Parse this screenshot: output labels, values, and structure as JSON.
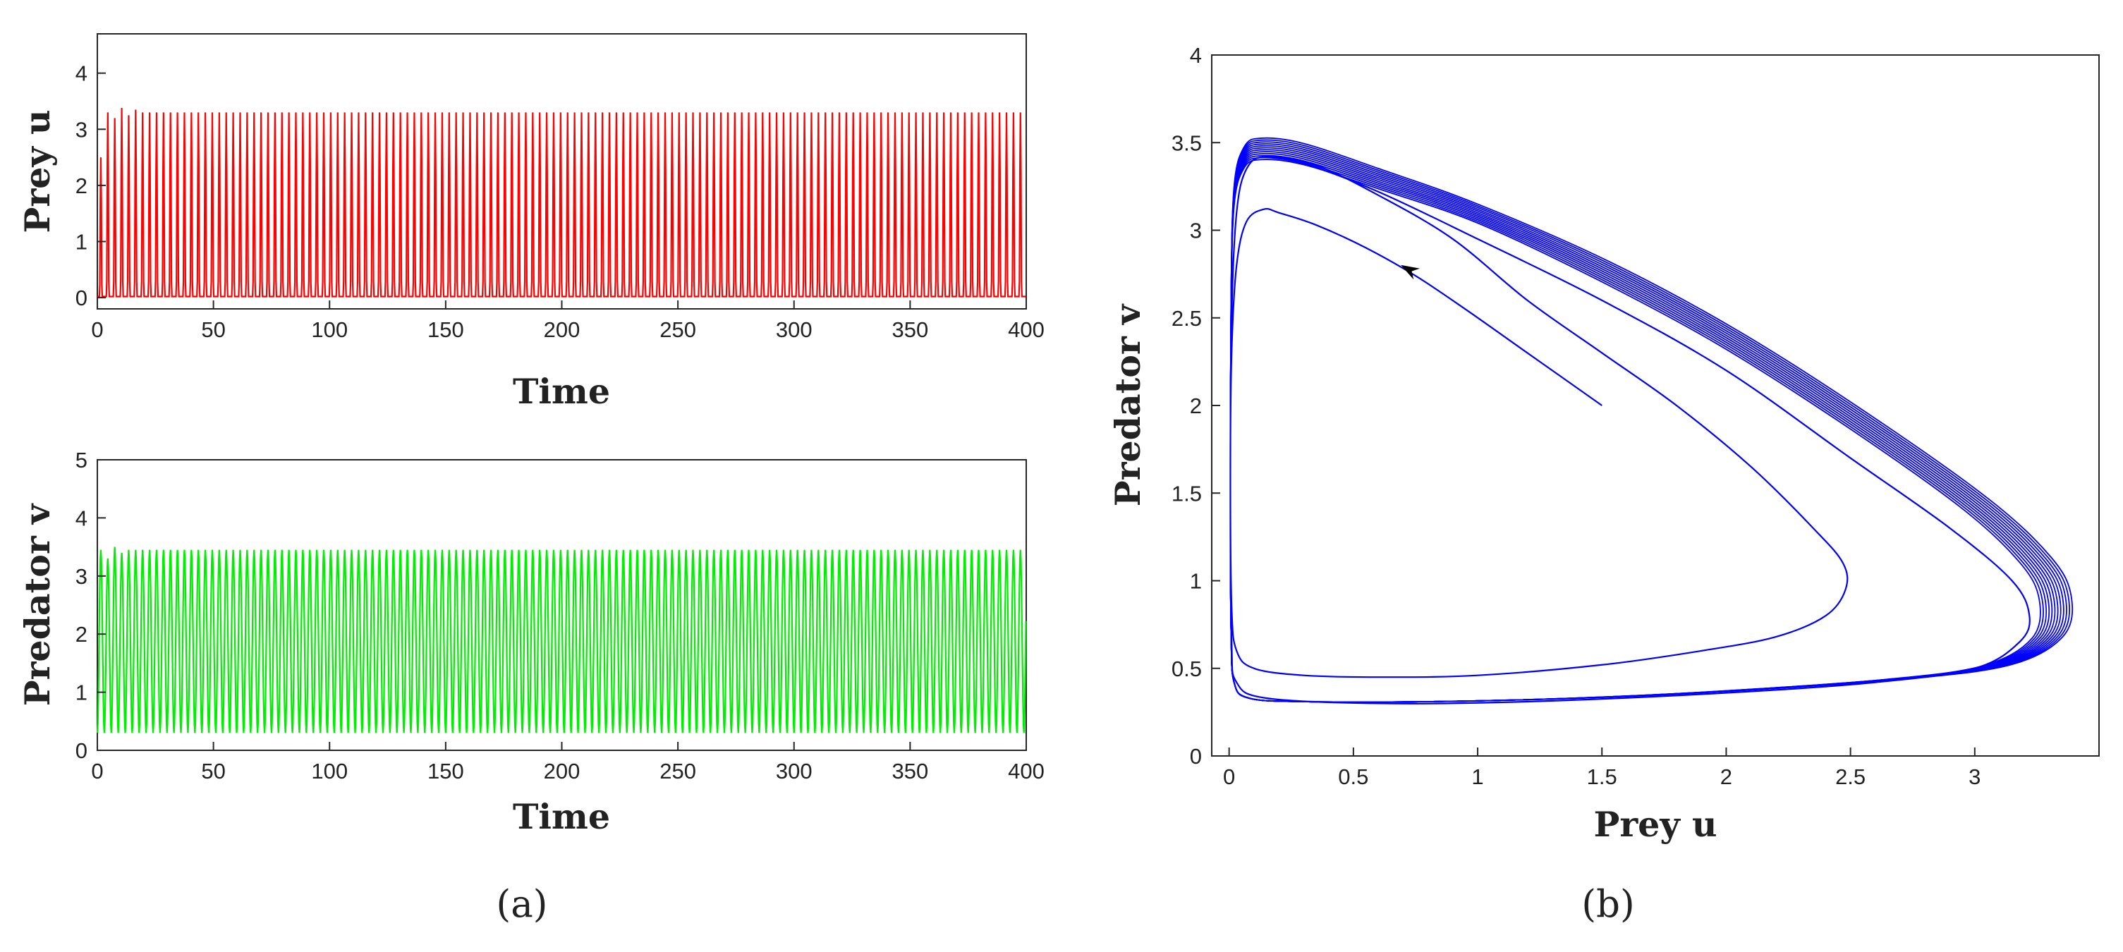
{
  "figure": {
    "panel_labels": [
      "(a)",
      "(b)"
    ]
  },
  "chart_data": [
    {
      "id": "prey-time",
      "type": "line",
      "title": "",
      "xlabel": "Time",
      "ylabel": "Prey u",
      "xlim": [
        0,
        400
      ],
      "ylim": [
        -0.2,
        4.7
      ],
      "xticks": [
        0,
        50,
        100,
        150,
        200,
        250,
        300,
        350,
        400
      ],
      "yticks": [
        0,
        1,
        2,
        3,
        4
      ],
      "grid": false,
      "color": "#ff0000",
      "series": [
        {
          "kind": "oscillation",
          "period": 3.0,
          "min": 0.02,
          "max": 3.3,
          "shape": "spike",
          "transient_peaks": [
            [
              1.5,
              2.5
            ],
            [
              6.5,
              3.2
            ],
            [
              9.5,
              3.38
            ],
            [
              12.5,
              3.25
            ],
            [
              15.5,
              3.35
            ]
          ],
          "x_start": 0,
          "x_end": 400
        }
      ]
    },
    {
      "id": "predator-time",
      "type": "line",
      "title": "",
      "xlabel": "Time",
      "ylabel": "Predator v",
      "xlim": [
        0,
        400
      ],
      "ylim": [
        0,
        5
      ],
      "xticks": [
        0,
        50,
        100,
        150,
        200,
        250,
        300,
        350,
        400
      ],
      "yticks": [
        0,
        1,
        2,
        3,
        4,
        5
      ],
      "grid": false,
      "color": "#00ee00",
      "series": [
        {
          "kind": "oscillation",
          "period": 3.0,
          "min": 0.3,
          "max": 3.45,
          "shape": "smooth",
          "transient_peaks": [
            [
              4.5,
              3.3
            ],
            [
              7.5,
              3.5
            ],
            [
              10.5,
              3.4
            ]
          ],
          "x_start": 0,
          "x_end": 400
        }
      ]
    },
    {
      "id": "phase-plane",
      "type": "line",
      "title": "",
      "xlabel": "Prey u",
      "ylabel": "Predator v",
      "xlim": [
        -0.07,
        3.5
      ],
      "ylim": [
        0,
        4
      ],
      "xticks": [
        0,
        0.5,
        1,
        1.5,
        2,
        2.5,
        3
      ],
      "yticks": [
        0,
        0.5,
        1,
        1.5,
        2,
        2.5,
        3,
        3.5,
        4
      ],
      "grid": false,
      "color": "#0000ff",
      "arrow_color": "#000000",
      "series": [
        {
          "kind": "transient",
          "points": [
            [
              1.5,
              2.0
            ],
            [
              1.2,
              2.3
            ],
            [
              0.95,
              2.55
            ],
            [
              0.75,
              2.74
            ],
            [
              0.55,
              2.9
            ],
            [
              0.35,
              3.03
            ],
            [
              0.2,
              3.1
            ],
            [
              0.14,
              3.12
            ],
            [
              0.07,
              3.05
            ],
            [
              0.03,
              2.8
            ],
            [
              0.01,
              2.3
            ],
            [
              0.005,
              1.6
            ],
            [
              0.01,
              0.85
            ],
            [
              0.03,
              0.6
            ],
            [
              0.1,
              0.5
            ],
            [
              0.3,
              0.46
            ],
            [
              0.6,
              0.45
            ],
            [
              1.0,
              0.46
            ],
            [
              1.5,
              0.52
            ],
            [
              1.9,
              0.6
            ],
            [
              2.2,
              0.68
            ],
            [
              2.4,
              0.8
            ],
            [
              2.48,
              0.95
            ],
            [
              2.47,
              1.1
            ],
            [
              2.35,
              1.3
            ],
            [
              2.1,
              1.65
            ],
            [
              1.8,
              2.0
            ],
            [
              1.5,
              2.3
            ],
            [
              1.2,
              2.6
            ],
            [
              0.9,
              2.95
            ],
            [
              0.6,
              3.2
            ],
            [
              0.35,
              3.37
            ],
            [
              0.15,
              3.42
            ],
            [
              0.07,
              3.35
            ],
            [
              0.03,
              3.1
            ],
            [
              0.01,
              2.5
            ],
            [
              0.005,
              1.5
            ],
            [
              0.01,
              0.65
            ],
            [
              0.03,
              0.42
            ],
            [
              0.15,
              0.33
            ],
            [
              0.6,
              0.3
            ],
            [
              1.2,
              0.31
            ],
            [
              2.0,
              0.36
            ],
            [
              2.6,
              0.42
            ],
            [
              3.0,
              0.5
            ],
            [
              3.18,
              0.65
            ],
            [
              3.22,
              0.8
            ],
            [
              3.15,
              1.0
            ],
            [
              2.9,
              1.3
            ],
            [
              2.5,
              1.7
            ],
            [
              2.0,
              2.2
            ],
            [
              1.5,
              2.6
            ],
            [
              1.0,
              2.95
            ],
            [
              0.6,
              3.22
            ],
            [
              0.3,
              3.38
            ],
            [
              0.13,
              3.42
            ]
          ]
        },
        {
          "kind": "limit-cycle",
          "loops": 12,
          "points": [
            [
              0.13,
              3.47
            ],
            [
              0.3,
              3.44
            ],
            [
              0.6,
              3.3
            ],
            [
              1.0,
              3.1
            ],
            [
              1.5,
              2.78
            ],
            [
              2.0,
              2.4
            ],
            [
              2.5,
              1.95
            ],
            [
              3.0,
              1.45
            ],
            [
              3.25,
              1.12
            ],
            [
              3.33,
              0.9
            ],
            [
              3.3,
              0.68
            ],
            [
              3.1,
              0.52
            ],
            [
              2.7,
              0.44
            ],
            [
              2.0,
              0.37
            ],
            [
              1.4,
              0.33
            ],
            [
              0.8,
              0.31
            ],
            [
              0.3,
              0.31
            ],
            [
              0.08,
              0.33
            ],
            [
              0.02,
              0.42
            ],
            [
              0.008,
              0.7
            ],
            [
              0.005,
              1.5
            ],
            [
              0.008,
              2.6
            ],
            [
              0.02,
              3.2
            ],
            [
              0.06,
              3.42
            ]
          ]
        }
      ],
      "arrow_at": [
        0.73,
        2.77
      ]
    }
  ]
}
